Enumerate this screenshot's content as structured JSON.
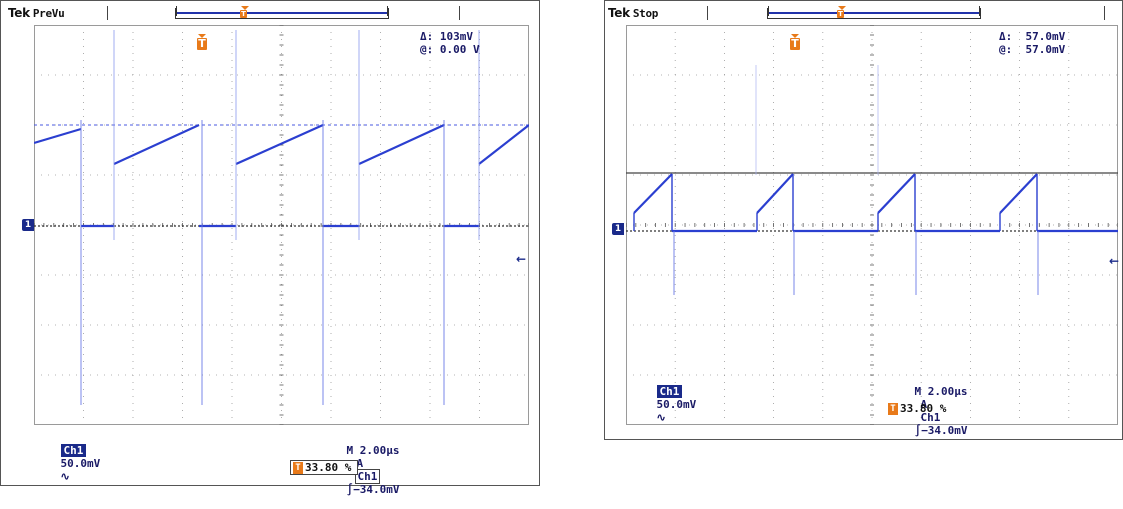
{
  "left_scope": {
    "brand": "Tek",
    "mode": "PreVu",
    "readout_delta": "Δ: 103mV",
    "readout_at": "@: 0.00 V",
    "ch_badge": "Ch1",
    "ch_scale": "50.0mV",
    "bw_symbol": "∿",
    "timebase": "M 2.00µs",
    "trigger_mode": "A",
    "trigger_source": "Ch1",
    "trigger_level": "∫−34.0mV",
    "trigger_percent": "33.80 %",
    "ch_marker": "1",
    "trigger_marker": "T"
  },
  "right_scope": {
    "brand": "Tek",
    "mode": "Stop",
    "readout_delta": "Δ:  57.0mV",
    "readout_at": "@:  57.0mV",
    "ch_badge": "Ch1",
    "ch_scale": "50.0mV",
    "bw_symbol": "∿",
    "timebase": "M 2.00µs",
    "trigger_mode": "A",
    "trigger_source": "Ch1",
    "trigger_level": "∫−34.0mV",
    "trigger_percent": "33.80 %",
    "ch_marker": "1",
    "trigger_marker": "T"
  },
  "colors": {
    "trace": "#2b3fd0",
    "grid": "#9a9a9a",
    "trigger_marker": "#e87a1a",
    "badge": "#1a2a8a"
  }
}
